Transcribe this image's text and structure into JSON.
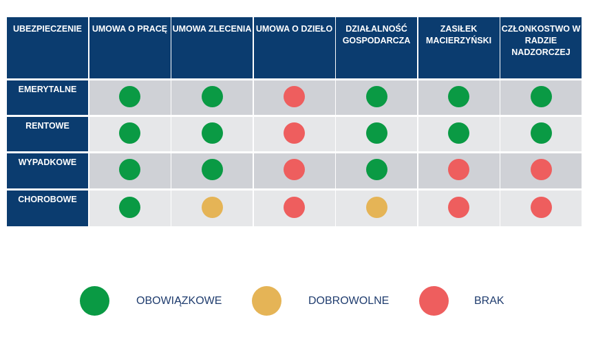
{
  "colors": {
    "header_bg": "#0b3c6f",
    "row_dark": "#cfd1d6",
    "row_light": "#e6e7e9",
    "obowiazkowe": "#0a9a44",
    "dobrowolne": "#e5b456",
    "brak": "#ee5e5e"
  },
  "table": {
    "corner": "UBEZPIECZENIE",
    "columns": [
      "UMOWA O PRACĘ",
      "UMOWA ZLECENIA",
      "UMOWA O DZIEŁO",
      "DZIAŁALNOŚĆ GOSPODARCZA",
      "ZASIŁEK MACIERZYŃSKI",
      "CZŁONKOSTWO W RADZIE NADZORCZEJ"
    ],
    "rows": [
      {
        "label": "EMERYTALNE",
        "values": [
          "obowiazkowe",
          "obowiazkowe",
          "brak",
          "obowiazkowe",
          "obowiazkowe",
          "obowiazkowe"
        ]
      },
      {
        "label": "RENTOWE",
        "values": [
          "obowiazkowe",
          "obowiazkowe",
          "brak",
          "obowiazkowe",
          "obowiazkowe",
          "obowiazkowe"
        ]
      },
      {
        "label": "WYPADKOWE",
        "values": [
          "obowiazkowe",
          "obowiazkowe",
          "brak",
          "obowiazkowe",
          "brak",
          "brak"
        ]
      },
      {
        "label": "CHOROBOWE",
        "values": [
          "obowiazkowe",
          "dobrowolne",
          "brak",
          "dobrowolne",
          "brak",
          "brak"
        ]
      }
    ]
  },
  "legend": [
    {
      "key": "obowiazkowe",
      "label": "OBOWIĄZKOWE"
    },
    {
      "key": "dobrowolne",
      "label": "DOBROWOLNE"
    },
    {
      "key": "brak",
      "label": "BRAK"
    }
  ]
}
